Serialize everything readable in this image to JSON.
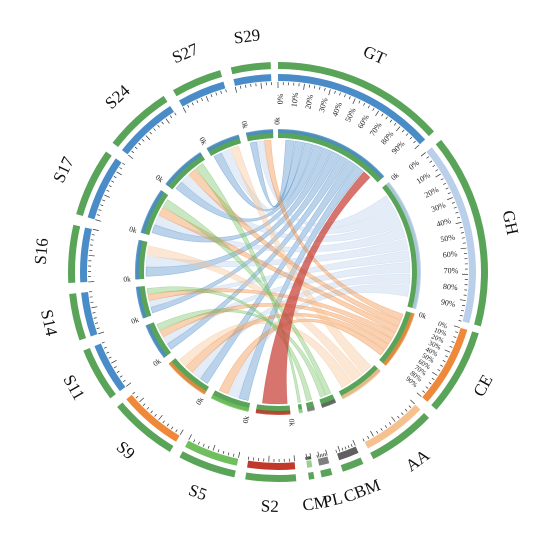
{
  "chart_data": {
    "type": "chord",
    "title": "",
    "outer_color": "#5aa45a",
    "link_colors": {
      "blue": "#4a8cc7",
      "orange": "#f0883a",
      "green": "#6fbf5e",
      "red": "#c8453c",
      "lightblue": "#b9cfea",
      "lightorange": "#f6c08f"
    },
    "segments": [
      {
        "name": "GT",
        "start": 0,
        "end": 48,
        "bar_color": "#4a8cc7",
        "ticks": [
          "0%",
          "10%",
          "20%",
          "30%",
          "40%",
          "50%",
          "60%",
          "70%",
          "80%",
          "90%"
        ]
      },
      {
        "name": "GH",
        "start": 51,
        "end": 105,
        "bar_color": "#b9cfea",
        "ticks": [
          "0%",
          "10%",
          "20%",
          "30%",
          "40%",
          "50%",
          "60%",
          "70%",
          "80%",
          "90%"
        ]
      },
      {
        "name": "CE",
        "start": 107,
        "end": 131,
        "bar_color": "#f0883a",
        "ticks": [
          "0%",
          "10%",
          "20%",
          "30%",
          "40%",
          "50%",
          "60%",
          "70%",
          "80%",
          "90%"
        ]
      },
      {
        "name": "AA",
        "start": 134,
        "end": 153,
        "bar_color": "#f6c08f",
        "ticks": []
      },
      {
        "name": "CBM",
        "start": 156,
        "end": 162,
        "bar_color": "#606060",
        "ticks": []
      },
      {
        "name": "PL",
        "start": 165,
        "end": 168,
        "bar_color": "#7f7f7f",
        "ticks": []
      },
      {
        "name": "CM",
        "start": 170,
        "end": 171.5,
        "bar_color": "#9ad08e",
        "ticks": []
      },
      {
        "name": "S2",
        "start": 175,
        "end": 189,
        "bar_color": "#c0392b",
        "ticks": []
      },
      {
        "name": "S5",
        "start": 192,
        "end": 208,
        "bar_color": "#6fbf5e",
        "ticks": []
      },
      {
        "name": "S9",
        "start": 211,
        "end": 230,
        "bar_color": "#f0883a",
        "ticks": []
      },
      {
        "name": "S11",
        "start": 233,
        "end": 248,
        "bar_color": "#4a8cc7",
        "ticks": []
      },
      {
        "name": "S14",
        "start": 251,
        "end": 264,
        "bar_color": "#4a8cc7",
        "ticks": []
      },
      {
        "name": "S16",
        "start": 267,
        "end": 283,
        "bar_color": "#4a8cc7",
        "ticks": []
      },
      {
        "name": "S17",
        "start": 286,
        "end": 305,
        "bar_color": "#4a8cc7",
        "ticks": []
      },
      {
        "name": "S24",
        "start": 308,
        "end": 327,
        "bar_color": "#4a8cc7",
        "ticks": []
      },
      {
        "name": "S27",
        "start": 330,
        "end": 344,
        "bar_color": "#4a8cc7",
        "ticks": []
      },
      {
        "name": "S29",
        "start": 347,
        "end": 358,
        "bar_color": "#4a8cc7",
        "ticks": []
      }
    ],
    "zero_labels": [
      "0k",
      "0k",
      "0k",
      "0k",
      "0k",
      "0k",
      "0k",
      "0k",
      "0k",
      "0k",
      "0k",
      "0k",
      "0k"
    ],
    "links": [
      {
        "source": "S29",
        "target": "GT",
        "color": "blue"
      },
      {
        "source": "S27",
        "target": "GT",
        "color": "blue"
      },
      {
        "source": "S24",
        "target": "GT",
        "color": "blue"
      },
      {
        "source": "S17",
        "target": "GT",
        "color": "blue"
      },
      {
        "source": "S16",
        "target": "GT",
        "color": "blue"
      },
      {
        "source": "S14",
        "target": "GT",
        "color": "blue"
      },
      {
        "source": "S11",
        "target": "GT",
        "color": "blue"
      },
      {
        "source": "S9",
        "target": "GT",
        "color": "blue"
      },
      {
        "source": "S5",
        "target": "GT",
        "color": "blue"
      },
      {
        "source": "S29",
        "target": "GH",
        "color": "lightblue"
      },
      {
        "source": "S27",
        "target": "GH",
        "color": "lightblue"
      },
      {
        "source": "S24",
        "target": "GH",
        "color": "lightblue"
      },
      {
        "source": "S17",
        "target": "GH",
        "color": "lightblue"
      },
      {
        "source": "S16",
        "target": "GH",
        "color": "lightblue"
      },
      {
        "source": "S14",
        "target": "GH",
        "color": "lightblue"
      },
      {
        "source": "S11",
        "target": "GH",
        "color": "lightblue"
      },
      {
        "source": "S9",
        "target": "GH",
        "color": "lightblue"
      },
      {
        "source": "S5",
        "target": "GH",
        "color": "lightblue"
      },
      {
        "source": "S29",
        "target": "CE",
        "color": "orange"
      },
      {
        "source": "S24",
        "target": "CE",
        "color": "orange"
      },
      {
        "source": "S17",
        "target": "CE",
        "color": "orange"
      },
      {
        "source": "S14",
        "target": "CE",
        "color": "orange"
      },
      {
        "source": "S11",
        "target": "CE",
        "color": "orange"
      },
      {
        "source": "S9",
        "target": "CE",
        "color": "orange"
      },
      {
        "source": "S5",
        "target": "CE",
        "color": "orange"
      },
      {
        "source": "S27",
        "target": "AA",
        "color": "lightorange"
      },
      {
        "source": "S16",
        "target": "AA",
        "color": "lightorange"
      },
      {
        "source": "S9",
        "target": "AA",
        "color": "lightorange"
      },
      {
        "source": "S17",
        "target": "CBM",
        "color": "green"
      },
      {
        "source": "S11",
        "target": "CBM",
        "color": "green"
      },
      {
        "source": "S14",
        "target": "PL",
        "color": "green"
      },
      {
        "source": "S24",
        "target": "CM",
        "color": "green"
      },
      {
        "source": "S2",
        "target": "GT",
        "color": "red"
      }
    ]
  }
}
